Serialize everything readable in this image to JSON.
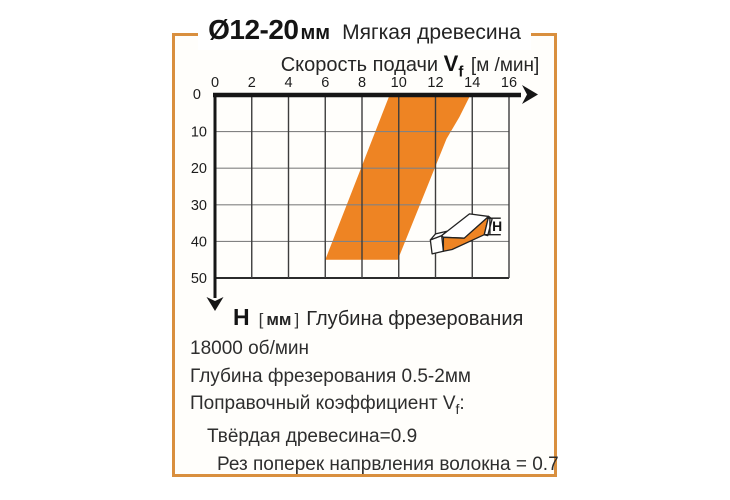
{
  "card": {
    "title_size": "Ø12-20",
    "title_unit": "мм",
    "title_material": "Мягкая древесина"
  },
  "x_axis_title": {
    "label": "Скорость подачи",
    "symbol": "V",
    "symbol_sub": "f",
    "unit": "[м /мин]"
  },
  "y_axis_title": {
    "symbol": "H",
    "bracket_open": "[",
    "unit": "мм",
    "bracket_close": "]",
    "label": "Глубина фрезерования"
  },
  "icon": {
    "h_label": "H"
  },
  "notes": {
    "rpm": "18000 об/мин",
    "depth": "Глубина фрезерования 0.5-2мм",
    "coeff_label": "Поправочный коэффициент",
    "coeff_symbol": "V",
    "coeff_sub": "f",
    "coeff_colon": ":",
    "hard_wood": "Твёрдая древесина=0.9",
    "cross_grain": "Рез поперек напрвления волокна = 0.7"
  },
  "colors": {
    "band": "#EE8423",
    "frame": "#D98F3E",
    "axis": "#161616",
    "grid_h": "#828282",
    "grid_v": "#3d3d3d"
  },
  "chart_data": {
    "type": "area",
    "title": "Ø12-20мм Мягкая древесина",
    "xlabel": "Скорость подачи Vf [м/мин]",
    "ylabel": "H [мм] Глубина фрезерования",
    "xlim": [
      0,
      16
    ],
    "ylim": [
      0,
      50
    ],
    "x_ticks": [
      0,
      2,
      4,
      6,
      8,
      10,
      12,
      14,
      16
    ],
    "y_ticks": [
      0,
      10,
      20,
      30,
      40,
      50
    ],
    "y_axis_inverted": true,
    "grid": true,
    "legend_position": "none",
    "band": {
      "description": "recommended feed/depth working range",
      "color": "#EE8423",
      "vertices_x_y": [
        [
          9.5,
          0
        ],
        [
          13.9,
          0
        ],
        [
          13.3,
          6
        ],
        [
          12.6,
          12
        ],
        [
          9.95,
          45
        ],
        [
          6,
          45
        ]
      ]
    }
  }
}
